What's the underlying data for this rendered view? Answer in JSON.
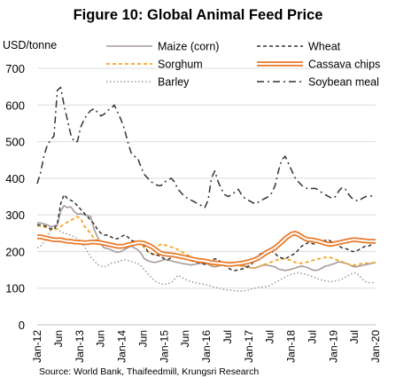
{
  "chart_data": {
    "type": "line",
    "title": "Figure 10: Global Animal Feed Price",
    "ylabel": "USD/tonne",
    "xlabel": "",
    "ylim": [
      0,
      700
    ],
    "yticks": [
      0,
      100,
      200,
      300,
      400,
      500,
      600,
      700
    ],
    "x_tick_labels": [
      "Jan-12",
      "Jun",
      "Jan-13",
      "Jun",
      "Jan-14",
      "Jun",
      "Jan-15",
      "Jun",
      "Jan-16",
      "Jul",
      "Jan-17",
      "Jul",
      "Jan-18",
      "Jul",
      "Jan-19",
      "Jul",
      "Jan-20"
    ],
    "legend_position": "top",
    "grid": "horizontal",
    "source": "Source: World Bank, Thaifeedmill, Krungsri Research",
    "series": [
      {
        "name": "Maize (corn)",
        "color": "#a89a98",
        "style": "solid",
        "width": 1.6,
        "values": [
          278,
          278,
          275,
          273,
          268,
          270,
          272,
          310,
          325,
          320,
          322,
          310,
          302,
          303,
          300,
          298,
          295,
          260,
          240,
          220,
          210,
          208,
          205,
          200,
          198,
          200,
          205,
          210,
          215,
          210,
          205,
          195,
          180,
          175,
          172,
          170,
          172,
          175,
          178,
          176,
          175,
          172,
          170,
          168,
          166,
          165,
          163,
          165,
          167,
          168,
          170,
          165,
          160,
          158,
          160,
          163,
          163,
          162,
          165,
          165,
          163,
          162,
          160,
          158,
          155,
          155,
          158,
          162,
          163,
          162,
          160,
          158,
          152,
          150,
          148,
          150,
          152,
          155,
          158,
          160,
          158,
          155,
          150,
          148,
          150,
          155,
          160,
          162,
          165,
          168,
          172,
          170,
          168,
          165,
          160,
          158,
          160,
          162,
          164,
          166,
          168,
          170
        ]
      },
      {
        "name": "Wheat",
        "color": "#333333",
        "style": "dash",
        "width": 1.5,
        "values": [
          273,
          272,
          270,
          268,
          262,
          260,
          275,
          330,
          355,
          345,
          340,
          335,
          325,
          315,
          305,
          295,
          285,
          275,
          260,
          250,
          245,
          245,
          240,
          235,
          235,
          240,
          245,
          240,
          230,
          228,
          225,
          225,
          215,
          200,
          195,
          190,
          190,
          185,
          180,
          178,
          183,
          188,
          190,
          185,
          180,
          178,
          175,
          172,
          170,
          168,
          165,
          168,
          175,
          180,
          178,
          170,
          162,
          155,
          150,
          148,
          150,
          152,
          155,
          160,
          165,
          180,
          190,
          195,
          200,
          205,
          200,
          195,
          185,
          182,
          180,
          185,
          190,
          195,
          205,
          215,
          220,
          225,
          222,
          220,
          225,
          228,
          230,
          232,
          225,
          220,
          215,
          210,
          208,
          205,
          200,
          200,
          205,
          210,
          215,
          215,
          220,
          225
        ]
      },
      {
        "name": "Sorghum",
        "color": "#f5a623",
        "style": "dash",
        "width": 1.8,
        "values": [
          270,
          270,
          268,
          265,
          260,
          258,
          262,
          268,
          275,
          280,
          285,
          290,
          295,
          290,
          270,
          260,
          248,
          235,
          230,
          225,
          222,
          220,
          218,
          215,
          212,
          210,
          212,
          215,
          218,
          220,
          222,
          220,
          210,
          200,
          195,
          192,
          215,
          220,
          218,
          215,
          212,
          210,
          205,
          200,
          195,
          190,
          185,
          180,
          175,
          170,
          168,
          165,
          163,
          162,
          162,
          163,
          164,
          165,
          165,
          164,
          163,
          160,
          158,
          156,
          155,
          155,
          158,
          162,
          165,
          168,
          172,
          175,
          178,
          180,
          180,
          178,
          175,
          170,
          168,
          168,
          170,
          172,
          175,
          178,
          180,
          182,
          184,
          185,
          182,
          178,
          175,
          172,
          168,
          165,
          163,
          163,
          165,
          167,
          168,
          168,
          169,
          170
        ]
      },
      {
        "name": "Cassava chips",
        "color": "#e8792a",
        "style": "double",
        "width": 1.5,
        "values": [
          240,
          240,
          238,
          236,
          234,
          232,
          232,
          232,
          230,
          228,
          228,
          226,
          226,
          225,
          224,
          224,
          226,
          226,
          225,
          224,
          222,
          220,
          218,
          216,
          214,
          214,
          215,
          218,
          220,
          222,
          224,
          224,
          222,
          218,
          214,
          208,
          200,
          195,
          193,
          192,
          191,
          190,
          188,
          186,
          184,
          182,
          180,
          178,
          176,
          175,
          174,
          172,
          170,
          169,
          168,
          167,
          166,
          165,
          165,
          166,
          167,
          168,
          170,
          172,
          175,
          178,
          182,
          188,
          195,
          200,
          205,
          210,
          218,
          226,
          235,
          242,
          248,
          250,
          246,
          240,
          235,
          232,
          232,
          230,
          228,
          225,
          222,
          220,
          220,
          222,
          224,
          226,
          228,
          230,
          232,
          232,
          231,
          230,
          229,
          228,
          228,
          228
        ]
      },
      {
        "name": "Barley",
        "color": "#999999",
        "style": "dot",
        "width": 1.5,
        "values": [
          210,
          215,
          225,
          240,
          260,
          270,
          260,
          255,
          250,
          248,
          245,
          240,
          235,
          225,
          215,
          200,
          185,
          175,
          165,
          160,
          158,
          162,
          168,
          170,
          172,
          175,
          178,
          176,
          172,
          170,
          168,
          160,
          150,
          140,
          130,
          120,
          115,
          112,
          110,
          112,
          115,
          125,
          135,
          130,
          125,
          120,
          118,
          115,
          113,
          112,
          110,
          108,
          105,
          102,
          100,
          98,
          96,
          95,
          94,
          93,
          92,
          92,
          93,
          95,
          98,
          100,
          102,
          103,
          104,
          105,
          110,
          115,
          120,
          125,
          130,
          135,
          138,
          140,
          142,
          140,
          138,
          135,
          132,
          128,
          125,
          122,
          120,
          118,
          118,
          120,
          122,
          125,
          130,
          135,
          140,
          142,
          135,
          125,
          118,
          115,
          115,
          115
        ]
      },
      {
        "name": "Soybean meal",
        "color": "#333333",
        "style": "dashdot",
        "width": 1.5,
        "values": [
          385,
          415,
          460,
          490,
          505,
          515,
          640,
          648,
          600,
          560,
          520,
          500,
          500,
          540,
          560,
          575,
          585,
          590,
          580,
          570,
          575,
          585,
          590,
          600,
          580,
          560,
          535,
          500,
          470,
          460,
          455,
          430,
          410,
          400,
          390,
          385,
          380,
          380,
          390,
          395,
          400,
          390,
          370,
          360,
          350,
          345,
          340,
          335,
          330,
          325,
          320,
          340,
          400,
          420,
          390,
          370,
          355,
          350,
          355,
          362,
          370,
          355,
          345,
          340,
          335,
          330,
          335,
          340,
          345,
          350,
          360,
          380,
          420,
          450,
          460,
          440,
          420,
          400,
          390,
          380,
          375,
          370,
          372,
          372,
          368,
          360,
          355,
          350,
          345,
          350,
          365,
          375,
          370,
          355,
          345,
          340,
          338,
          345,
          350,
          350,
          352,
          350
        ]
      }
    ]
  }
}
